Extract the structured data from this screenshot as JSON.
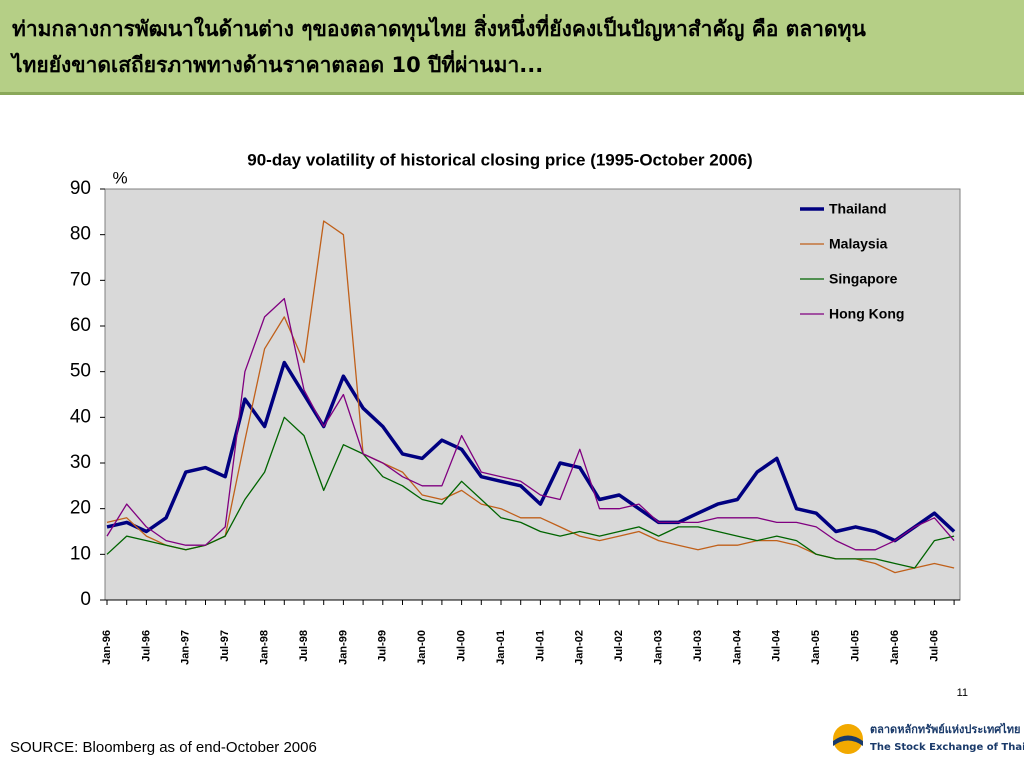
{
  "header": {
    "lines": [
      "ท่ามกลางการพัฒนาในด้านต่าง ๆของตลาดทุนไทย สิ่งหนึ่งที่ยังคงเป็นปัญหาสำคัญ คือ ตลาดทุน",
      "ไทยยังขาดเสถียรภาพทางด้านราคาตลอด 10 ปีที่ผ่านมา..."
    ]
  },
  "chart_data": {
    "type": "line",
    "title": "90-day volatility of historical closing price (1995-October 2006)",
    "y_label": "%",
    "categories": [
      "Jan-96",
      null,
      "Jul-96",
      null,
      "Jan-97",
      null,
      "Jul-97",
      null,
      "Jan-98",
      null,
      "Jul-98",
      null,
      "Jan-99",
      null,
      "Jul-99",
      null,
      "Jan-00",
      null,
      "Jul-00",
      null,
      "Jan-01",
      null,
      "Jul-01",
      null,
      "Jan-02",
      null,
      "Jul-02",
      null,
      "Jan-03",
      null,
      "Jul-03",
      null,
      "Jan-04",
      null,
      "Jul-04",
      null,
      "Jan-05",
      null,
      "Jul-05",
      null,
      "Jan-06",
      null,
      "Jul-06",
      null
    ],
    "series": [
      {
        "name": "Thailand",
        "color": "#000080",
        "values": [
          16,
          17,
          15,
          18,
          28,
          29,
          27,
          44,
          38,
          52,
          45,
          38,
          49,
          42,
          38,
          32,
          31,
          35,
          33,
          27,
          26,
          25,
          21,
          30,
          29,
          22,
          23,
          20,
          17,
          17,
          19,
          21,
          22,
          28,
          31,
          20,
          19,
          15,
          16,
          15,
          13,
          16,
          19,
          15
        ]
      },
      {
        "name": "Malaysia",
        "color": "#c0601a",
        "values": [
          17,
          18,
          14,
          12,
          11,
          12,
          14,
          35,
          55,
          62,
          52,
          83,
          80,
          32,
          30,
          28,
          23,
          22,
          24,
          21,
          20,
          18,
          18,
          16,
          14,
          13,
          14,
          15,
          13,
          12,
          11,
          12,
          12,
          13,
          13,
          12,
          10,
          9,
          9,
          8,
          6,
          7,
          8,
          7
        ]
      },
      {
        "name": "Singapore",
        "color": "#006400",
        "values": [
          10,
          14,
          13,
          12,
          11,
          12,
          14,
          22,
          28,
          40,
          36,
          24,
          34,
          32,
          27,
          25,
          22,
          21,
          26,
          22,
          18,
          17,
          15,
          14,
          15,
          14,
          15,
          16,
          14,
          16,
          16,
          15,
          14,
          13,
          14,
          13,
          10,
          9,
          9,
          9,
          8,
          7,
          13,
          14
        ]
      },
      {
        "name": "Hong Kong",
        "color": "#800080",
        "values": [
          14,
          21,
          16,
          13,
          12,
          12,
          16,
          50,
          62,
          66,
          46,
          38,
          45,
          32,
          30,
          27,
          25,
          25,
          36,
          28,
          27,
          26,
          23,
          22,
          33,
          20,
          20,
          21,
          17,
          17,
          17,
          18,
          18,
          18,
          17,
          17,
          16,
          13,
          11,
          11,
          13,
          16,
          18,
          13
        ]
      }
    ],
    "ylim": [
      0,
      90
    ],
    "yticks": [
      0,
      10,
      20,
      30,
      40,
      50,
      60,
      70,
      80,
      90
    ],
    "legend": "upper right",
    "plot_background": "#d9d9d9"
  },
  "page_number": "11",
  "source": "SOURCE: Bloomberg as of end-October 2006",
  "logo": {
    "thai": "ตลาดหลักทรัพย์แห่งประเทศไทย",
    "english": "The Stock Exchange of Thailand"
  }
}
